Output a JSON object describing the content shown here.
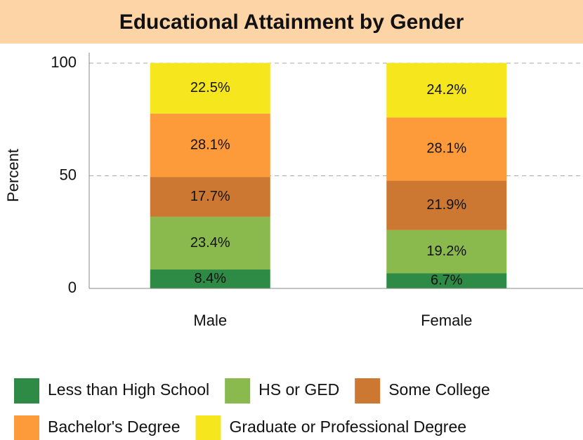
{
  "chart_data": {
    "type": "stacked_bar",
    "title": "Educational Attainment by Gender",
    "ylabel": "Percent",
    "categories": [
      "Male",
      "Female"
    ],
    "series": [
      {
        "name": "Less than High School",
        "color": "#2e8b45",
        "values": [
          8.4,
          6.7
        ],
        "value_labels": [
          "8.4%",
          "6.7%"
        ]
      },
      {
        "name": "HS or GED",
        "color": "#8ab94e",
        "values": [
          23.4,
          19.2
        ],
        "value_labels": [
          "23.4%",
          "19.2%"
        ]
      },
      {
        "name": "Some College",
        "color": "#cc7832",
        "values": [
          17.7,
          21.9
        ],
        "value_labels": [
          "17.7%",
          "21.9%"
        ]
      },
      {
        "name": "Bachelor's Degree",
        "color": "#fd9b3a",
        "values": [
          28.1,
          28.1
        ],
        "value_labels": [
          "28.1%",
          "28.1%"
        ]
      },
      {
        "name": "Graduate or Professional Degree",
        "color": "#f5e61e",
        "values": [
          22.5,
          24.2
        ],
        "value_labels": [
          "22.5%",
          "24.2%"
        ]
      }
    ],
    "ylim": [
      0,
      100
    ],
    "yticks": [
      0,
      50,
      100
    ],
    "grid": true,
    "legend": "bottom"
  }
}
